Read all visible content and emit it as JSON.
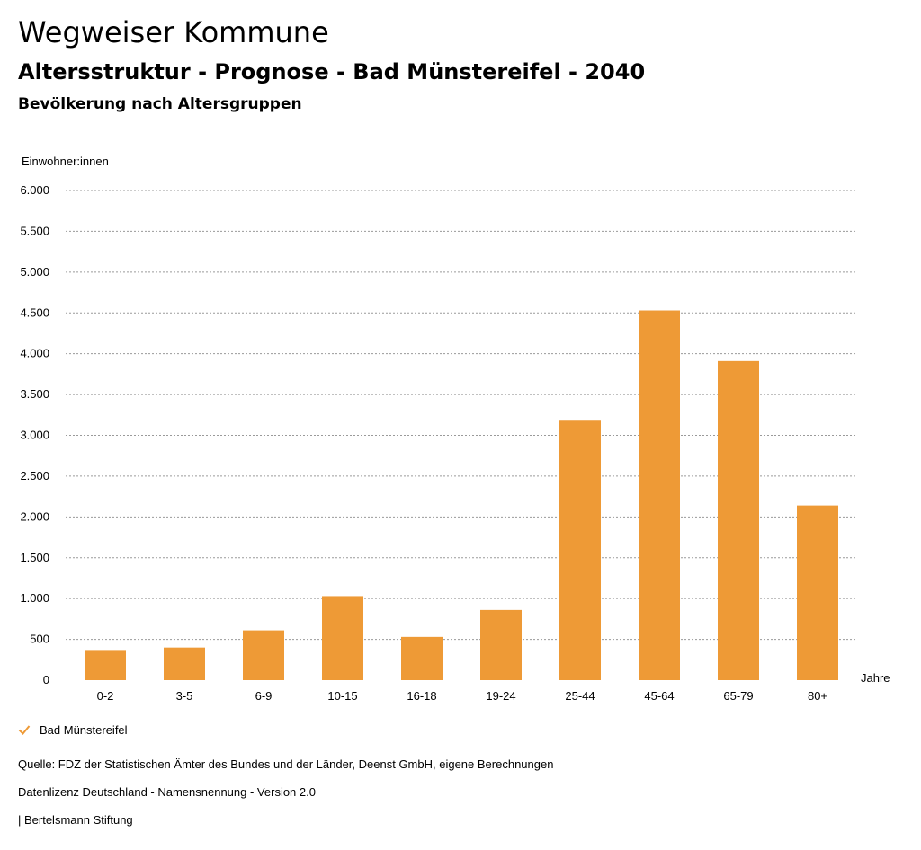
{
  "header": {
    "title": "Wegweiser Kommune",
    "subtitle": "Altersstruktur - Prognose - Bad Münstereifel - 2040",
    "subsubtitle": "Bevölkerung nach Altersgruppen"
  },
  "chart_data": {
    "type": "bar",
    "ylabel": "Einwohner:innen",
    "xlabel": "Jahre",
    "categories": [
      "0-2",
      "3-5",
      "6-9",
      "10-15",
      "16-18",
      "19-24",
      "25-44",
      "45-64",
      "65-79",
      "80+"
    ],
    "series": [
      {
        "name": "Bad Münstereifel",
        "values": [
          370,
          400,
          610,
          1030,
          530,
          860,
          3190,
          4530,
          3910,
          2140
        ]
      }
    ],
    "ylim": [
      0,
      6000
    ],
    "yticks": [
      0,
      500,
      1000,
      1500,
      2000,
      2500,
      3000,
      3500,
      4000,
      4500,
      5000,
      5500,
      6000
    ],
    "ytick_labels": [
      "0",
      "500",
      "1.000",
      "1.500",
      "2.000",
      "2.500",
      "3.000",
      "3.500",
      "4.000",
      "4.500",
      "5.000",
      "5.500",
      "6.000"
    ],
    "grid": true,
    "legend_position": "bottom-left",
    "bar_color": "#ee9a36"
  },
  "legend": {
    "label": "Bad Münstereifel",
    "color": "#ee9a36"
  },
  "footer": {
    "source": "Quelle: FDZ der Statistischen Ämter des Bundes und der Länder, Deenst GmbH, eigene Berechnungen",
    "license": "Datenlizenz Deutschland - Namensnennung - Version 2.0",
    "credit": "| Bertelsmann Stiftung"
  }
}
